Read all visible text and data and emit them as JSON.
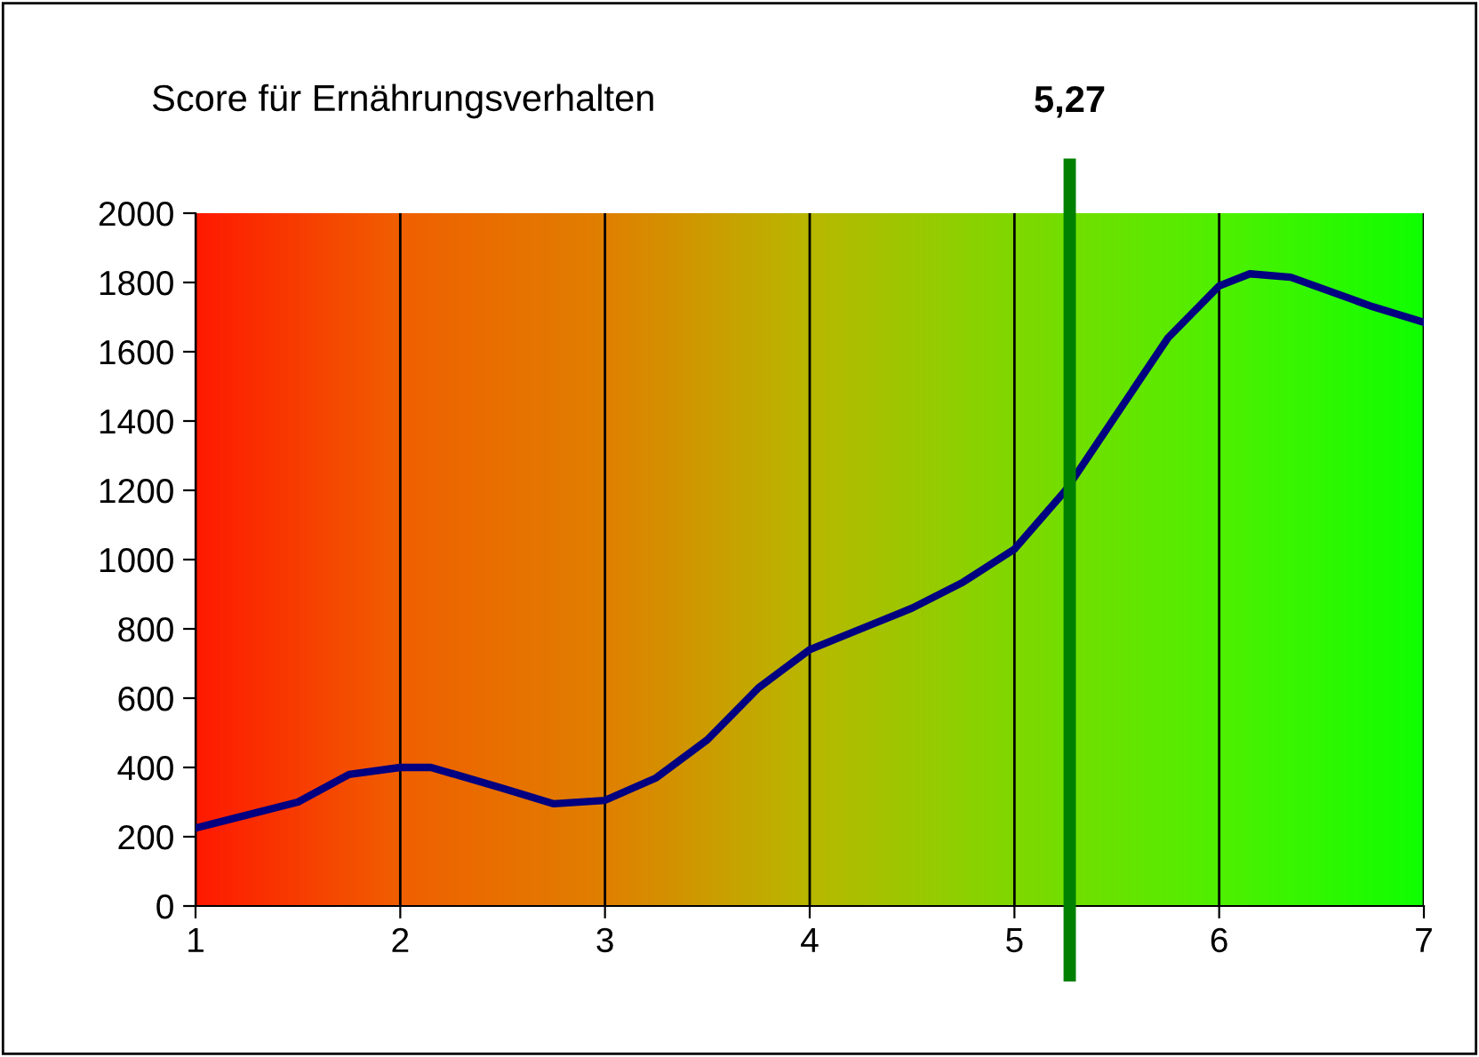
{
  "chart_data": {
    "type": "line",
    "title": "Score für Ernährungsverhalten",
    "x": [
      1,
      1.5,
      1.75,
      2,
      2.15,
      2.5,
      2.75,
      3,
      3.25,
      3.5,
      3.75,
      4,
      4.25,
      4.5,
      4.75,
      5,
      5.25,
      5.5,
      5.75,
      6,
      6.15,
      6.35,
      6.75,
      7
    ],
    "series": [
      {
        "color": "#000080",
        "values": [
          225,
          300,
          380,
          400,
          400,
          340,
          295,
          305,
          370,
          480,
          630,
          740,
          800,
          860,
          935,
          1030,
          1200,
          1420,
          1640,
          1790,
          1825,
          1815,
          1730,
          1685
        ]
      }
    ],
    "xlim": [
      1,
      7
    ],
    "xticks": [
      1,
      2,
      3,
      4,
      5,
      6,
      7
    ],
    "ylim": [
      0,
      2000
    ],
    "yticks": [
      0,
      200,
      400,
      600,
      800,
      1000,
      1200,
      1400,
      1600,
      1800,
      2000
    ],
    "grid": "x",
    "legend": false,
    "marker": "none",
    "line_style": "solid",
    "ref_lines": [
      {
        "axis": "x",
        "value": 5.27,
        "label": "5,27",
        "color": "#008000",
        "line_style": "solid"
      }
    ]
  }
}
